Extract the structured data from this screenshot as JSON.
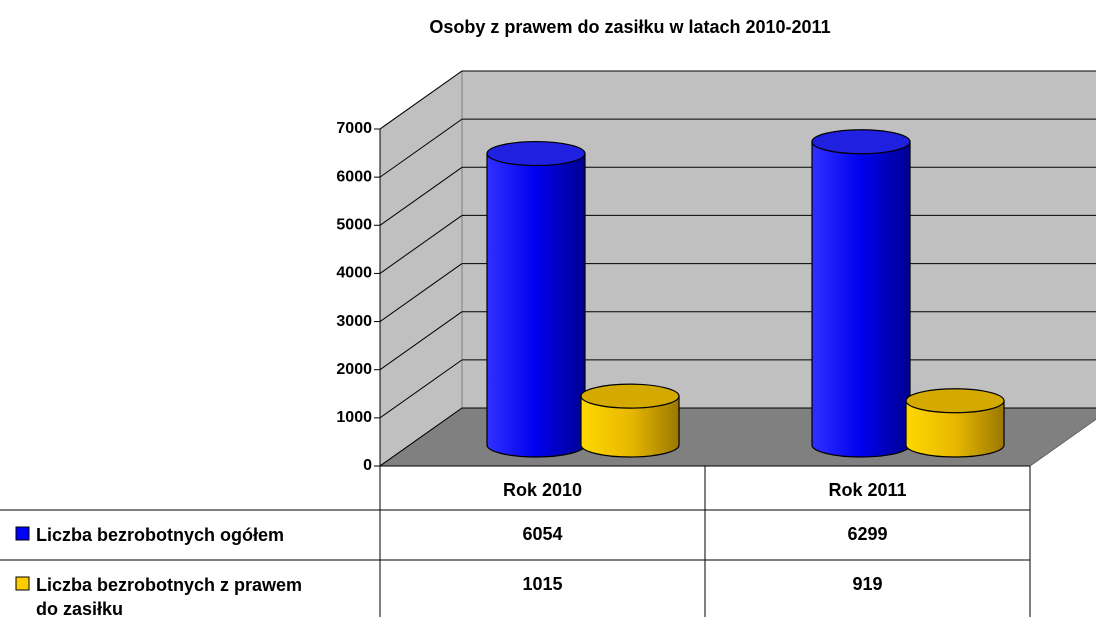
{
  "chart_data": {
    "type": "bar",
    "title": "Osoby z prawem do zasiłku w latach 2010-2011",
    "categories": [
      "Rok 2010",
      "Rok 2011"
    ],
    "series": [
      {
        "name": "Liczba bezrobotnych ogółem",
        "color": "#0000ff",
        "values": [
          6054,
          6299
        ]
      },
      {
        "name": "Liczba bezrobotnych z prawem do zasiłku",
        "color": "#ffcc00",
        "values": [
          1015,
          919
        ]
      }
    ],
    "ylim": [
      0,
      7000
    ],
    "yticks": [
      0,
      1000,
      2000,
      3000,
      4000,
      5000,
      6000,
      7000
    ],
    "grid": true
  }
}
